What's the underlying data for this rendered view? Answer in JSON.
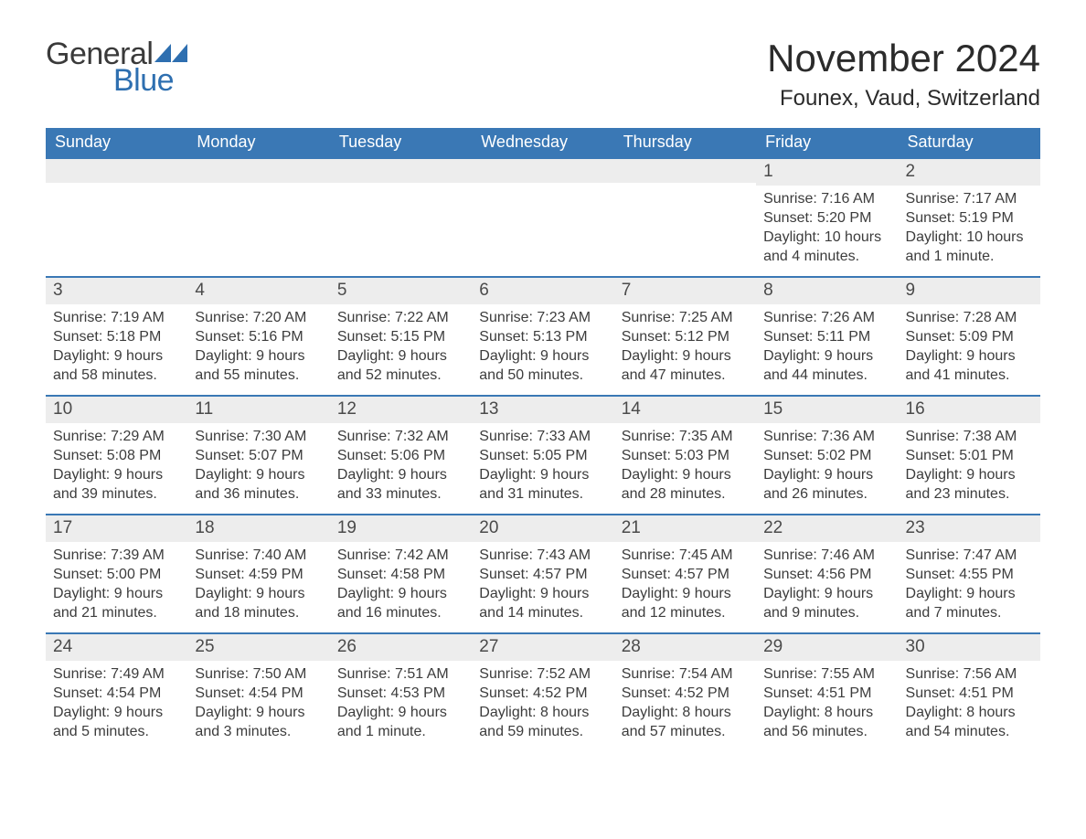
{
  "logo": {
    "word1": "General",
    "word2": "Blue",
    "icon_color": "#2e6fb0"
  },
  "title": "November 2024",
  "location": "Founex, Vaud, Switzerland",
  "colors": {
    "header_bg": "#3a78b5",
    "header_text": "#ffffff",
    "daynum_bg": "#ededed",
    "rule": "#3a78b5",
    "body_text": "#3c3c3c",
    "page_bg": "#ffffff"
  },
  "daysOfWeek": [
    "Sunday",
    "Monday",
    "Tuesday",
    "Wednesday",
    "Thursday",
    "Friday",
    "Saturday"
  ],
  "calendar": {
    "type": "table",
    "columns": 7,
    "leading_blanks": 5,
    "days": [
      {
        "n": 1,
        "sunrise": "7:16 AM",
        "sunset": "5:20 PM",
        "daylight": "10 hours and 4 minutes."
      },
      {
        "n": 2,
        "sunrise": "7:17 AM",
        "sunset": "5:19 PM",
        "daylight": "10 hours and 1 minute."
      },
      {
        "n": 3,
        "sunrise": "7:19 AM",
        "sunset": "5:18 PM",
        "daylight": "9 hours and 58 minutes."
      },
      {
        "n": 4,
        "sunrise": "7:20 AM",
        "sunset": "5:16 PM",
        "daylight": "9 hours and 55 minutes."
      },
      {
        "n": 5,
        "sunrise": "7:22 AM",
        "sunset": "5:15 PM",
        "daylight": "9 hours and 52 minutes."
      },
      {
        "n": 6,
        "sunrise": "7:23 AM",
        "sunset": "5:13 PM",
        "daylight": "9 hours and 50 minutes."
      },
      {
        "n": 7,
        "sunrise": "7:25 AM",
        "sunset": "5:12 PM",
        "daylight": "9 hours and 47 minutes."
      },
      {
        "n": 8,
        "sunrise": "7:26 AM",
        "sunset": "5:11 PM",
        "daylight": "9 hours and 44 minutes."
      },
      {
        "n": 9,
        "sunrise": "7:28 AM",
        "sunset": "5:09 PM",
        "daylight": "9 hours and 41 minutes."
      },
      {
        "n": 10,
        "sunrise": "7:29 AM",
        "sunset": "5:08 PM",
        "daylight": "9 hours and 39 minutes."
      },
      {
        "n": 11,
        "sunrise": "7:30 AM",
        "sunset": "5:07 PM",
        "daylight": "9 hours and 36 minutes."
      },
      {
        "n": 12,
        "sunrise": "7:32 AM",
        "sunset": "5:06 PM",
        "daylight": "9 hours and 33 minutes."
      },
      {
        "n": 13,
        "sunrise": "7:33 AM",
        "sunset": "5:05 PM",
        "daylight": "9 hours and 31 minutes."
      },
      {
        "n": 14,
        "sunrise": "7:35 AM",
        "sunset": "5:03 PM",
        "daylight": "9 hours and 28 minutes."
      },
      {
        "n": 15,
        "sunrise": "7:36 AM",
        "sunset": "5:02 PM",
        "daylight": "9 hours and 26 minutes."
      },
      {
        "n": 16,
        "sunrise": "7:38 AM",
        "sunset": "5:01 PM",
        "daylight": "9 hours and 23 minutes."
      },
      {
        "n": 17,
        "sunrise": "7:39 AM",
        "sunset": "5:00 PM",
        "daylight": "9 hours and 21 minutes."
      },
      {
        "n": 18,
        "sunrise": "7:40 AM",
        "sunset": "4:59 PM",
        "daylight": "9 hours and 18 minutes."
      },
      {
        "n": 19,
        "sunrise": "7:42 AM",
        "sunset": "4:58 PM",
        "daylight": "9 hours and 16 minutes."
      },
      {
        "n": 20,
        "sunrise": "7:43 AM",
        "sunset": "4:57 PM",
        "daylight": "9 hours and 14 minutes."
      },
      {
        "n": 21,
        "sunrise": "7:45 AM",
        "sunset": "4:57 PM",
        "daylight": "9 hours and 12 minutes."
      },
      {
        "n": 22,
        "sunrise": "7:46 AM",
        "sunset": "4:56 PM",
        "daylight": "9 hours and 9 minutes."
      },
      {
        "n": 23,
        "sunrise": "7:47 AM",
        "sunset": "4:55 PM",
        "daylight": "9 hours and 7 minutes."
      },
      {
        "n": 24,
        "sunrise": "7:49 AM",
        "sunset": "4:54 PM",
        "daylight": "9 hours and 5 minutes."
      },
      {
        "n": 25,
        "sunrise": "7:50 AM",
        "sunset": "4:54 PM",
        "daylight": "9 hours and 3 minutes."
      },
      {
        "n": 26,
        "sunrise": "7:51 AM",
        "sunset": "4:53 PM",
        "daylight": "9 hours and 1 minute."
      },
      {
        "n": 27,
        "sunrise": "7:52 AM",
        "sunset": "4:52 PM",
        "daylight": "8 hours and 59 minutes."
      },
      {
        "n": 28,
        "sunrise": "7:54 AM",
        "sunset": "4:52 PM",
        "daylight": "8 hours and 57 minutes."
      },
      {
        "n": 29,
        "sunrise": "7:55 AM",
        "sunset": "4:51 PM",
        "daylight": "8 hours and 56 minutes."
      },
      {
        "n": 30,
        "sunrise": "7:56 AM",
        "sunset": "4:51 PM",
        "daylight": "8 hours and 54 minutes."
      }
    ]
  },
  "labels": {
    "sunrise": "Sunrise: ",
    "sunset": "Sunset: ",
    "daylight": "Daylight: "
  }
}
